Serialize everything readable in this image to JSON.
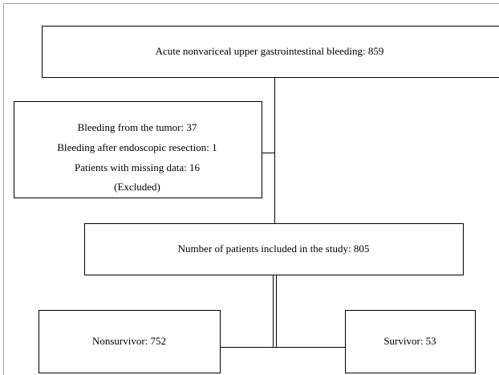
{
  "nodes": [
    {
      "lines": [
        "Acute nonvariceal upper gastrointestinal bleeding: 859"
      ]
    },
    {
      "lines": [
        "Bleeding from the tumor: 37",
        "Bleeding after endoscopic resection: 1",
        "Patients with missing data: 16",
        "(Excluded)"
      ]
    },
    {
      "lines": [
        "Number of patients included in the study: 805"
      ]
    },
    {
      "lines": [
        "Nonsurvivor: 752"
      ]
    },
    {
      "lines": [
        "Survivor: 53"
      ]
    }
  ]
}
